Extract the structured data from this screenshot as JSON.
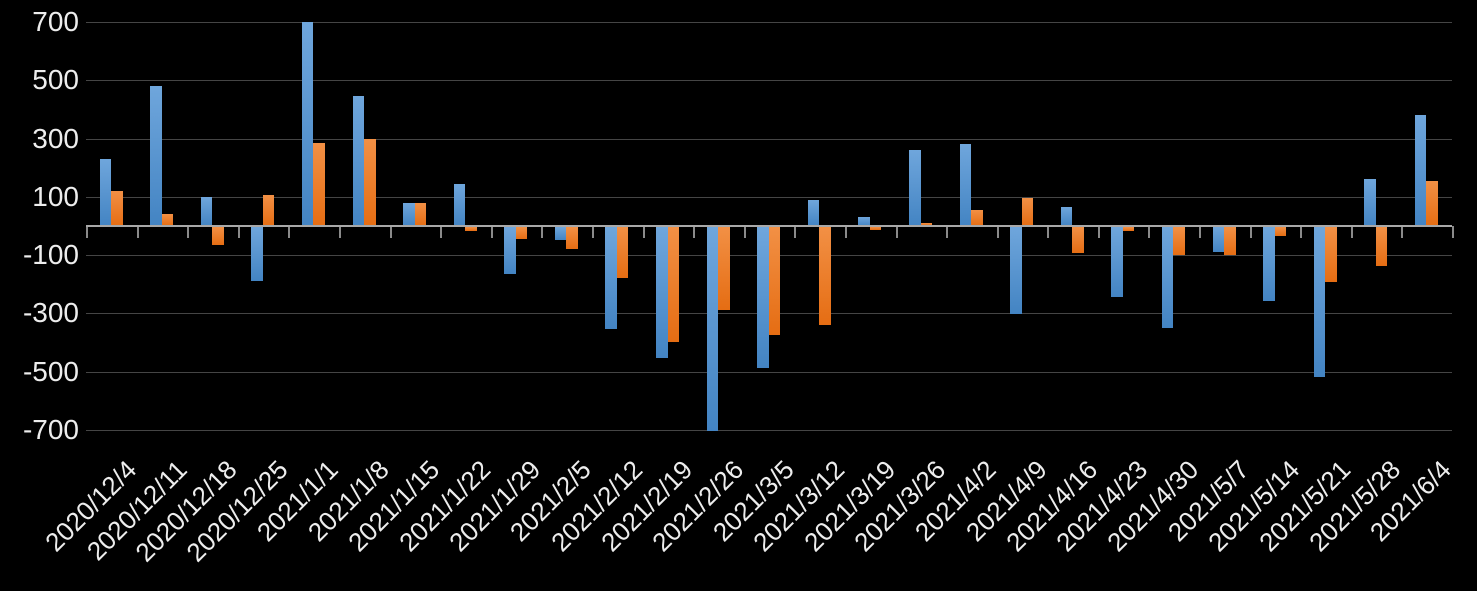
{
  "chart_data": {
    "type": "bar",
    "title": "",
    "legend": "none",
    "grid": true,
    "categories": [
      "2020/12/4",
      "2020/12/11",
      "2020/12/18",
      "2020/12/25",
      "2021/1/1",
      "2021/1/8",
      "2021/1/15",
      "2021/1/22",
      "2021/1/29",
      "2021/2/5",
      "2021/2/12",
      "2021/2/19",
      "2021/2/26",
      "2021/3/5",
      "2021/3/12",
      "2021/3/19",
      "2021/3/26",
      "2021/4/2",
      "2021/4/9",
      "2021/4/16",
      "2021/4/23",
      "2021/4/30",
      "2021/5/7",
      "2021/5/14",
      "2021/5/21",
      "2021/5/28",
      "2021/6/4"
    ],
    "series": [
      {
        "name": "blue-series",
        "color": "#4f8fce",
        "values": [
          230,
          480,
          100,
          -185,
          700,
          445,
          80,
          145,
          -160,
          -45,
          -350,
          -450,
          -700,
          -485,
          90,
          30,
          260,
          280,
          -300,
          65,
          -240,
          -345,
          -85,
          -255,
          -515,
          160,
          380
        ]
      },
      {
        "name": "orange-series",
        "color": "#ec7c26",
        "values": [
          120,
          40,
          -60,
          105,
          285,
          300,
          80,
          -15,
          -40,
          -75,
          -175,
          -395,
          -285,
          -370,
          -335,
          -10,
          10,
          55,
          95,
          -90,
          -15,
          -95,
          -95,
          -30,
          -190,
          -135,
          155
        ]
      }
    ],
    "y_axis": {
      "min": -700,
      "max": 700,
      "tick_labels": [
        "700",
        "500",
        "300",
        "100",
        "-100",
        "-300",
        "-500",
        "-700"
      ],
      "tick_values": [
        700,
        500,
        300,
        100,
        -100,
        -300,
        -500,
        -700
      ]
    }
  },
  "colors": {
    "background": "#000000",
    "gridline": "#454545",
    "axis_line": "#a8a8a8",
    "tick_mark": "#8a8a8a",
    "label_text": "#ededed",
    "bar_blue_top": "#6fa6dc",
    "bar_blue_bottom": "#4384c3",
    "bar_orange_top": "#f29045",
    "bar_orange_bottom": "#e56d13"
  }
}
